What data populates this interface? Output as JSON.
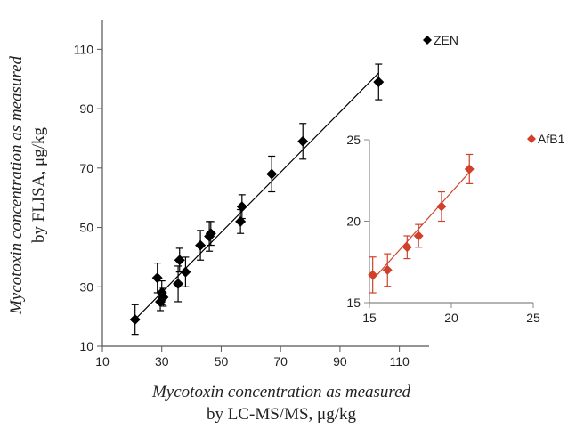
{
  "chart_data": [
    {
      "type": "scatter",
      "series": [
        {
          "name": "ZEN",
          "color": "#000000",
          "marker": "diamond",
          "points": [
            {
              "x": 21,
              "y": 19,
              "err": 5
            },
            {
              "x": 28.5,
              "y": 33,
              "err": 5
            },
            {
              "x": 29.5,
              "y": 25,
              "err": 3
            },
            {
              "x": 30,
              "y": 28,
              "err": 4
            },
            {
              "x": 30.5,
              "y": 26.5,
              "err": 3
            },
            {
              "x": 35.5,
              "y": 31,
              "err": 6
            },
            {
              "x": 36,
              "y": 39,
              "err": 4
            },
            {
              "x": 38,
              "y": 35,
              "err": 5
            },
            {
              "x": 43,
              "y": 44,
              "err": 5
            },
            {
              "x": 46,
              "y": 47,
              "err": 5
            },
            {
              "x": 46.5,
              "y": 48,
              "err": 4
            },
            {
              "x": 56.5,
              "y": 52,
              "err": 4
            },
            {
              "x": 57,
              "y": 57,
              "err": 4
            },
            {
              "x": 67,
              "y": 68,
              "err": 6
            },
            {
              "x": 77.5,
              "y": 79,
              "err": 6
            },
            {
              "x": 103,
              "y": 99,
              "err": 6
            }
          ],
          "trendline": {
            "x0": 21,
            "y0": 19,
            "x1": 103,
            "y1": 102
          }
        }
      ],
      "xlabel_lines": [
        "Mycotoxin concentration as measured",
        "by LC-MS/MS, μg/kg"
      ],
      "ylabel_lines": [
        "Mycotoxin concentration as measured",
        "by FLISA, μg/kg"
      ],
      "xlim": [
        10,
        120
      ],
      "ylim": [
        10,
        120
      ],
      "xticks": [
        10,
        30,
        50,
        70,
        90,
        110
      ],
      "yticks": [
        10,
        30,
        50,
        70,
        90,
        110
      ],
      "grid": false,
      "legend_position": "top-right"
    },
    {
      "type": "scatter",
      "series": [
        {
          "name": "AfB1",
          "color": "#d0402a",
          "marker": "diamond",
          "points": [
            {
              "x": 15.2,
              "y": 16.7,
              "err": 1.1
            },
            {
              "x": 16.1,
              "y": 17.0,
              "err": 1.0
            },
            {
              "x": 17.3,
              "y": 18.4,
              "err": 0.7
            },
            {
              "x": 18.0,
              "y": 19.1,
              "err": 0.7
            },
            {
              "x": 19.4,
              "y": 20.9,
              "err": 0.9
            },
            {
              "x": 21.1,
              "y": 23.2,
              "err": 0.9
            }
          ],
          "trendline": {
            "x0": 15.2,
            "y0": 16.4,
            "x1": 21.1,
            "y1": 23.0
          }
        }
      ],
      "xlim": [
        15,
        25
      ],
      "ylim": [
        15,
        25
      ],
      "xticks": [
        15,
        20,
        25
      ],
      "yticks": [
        15,
        20,
        25
      ],
      "grid": false,
      "legend_position": "top-right"
    }
  ]
}
